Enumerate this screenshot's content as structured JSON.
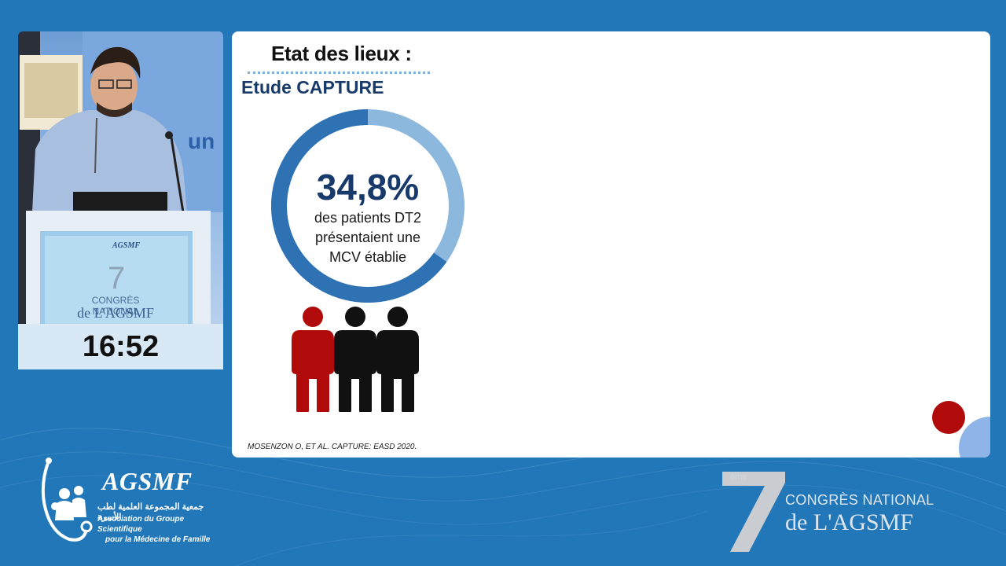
{
  "speaker_panel": {
    "timer": "16:52",
    "podium_screen": {
      "brand": "AGSMF",
      "number": "7",
      "line1": "CONGRÈS NATIONAL",
      "line2": "de L'AGSMF"
    },
    "backdrop_text": "un"
  },
  "slide": {
    "title": "Etat des lieux :",
    "subtitle": "Etude CAPTURE",
    "stat": {
      "value": "34,8%",
      "fraction": 0.348,
      "caption": [
        "des patients DT2",
        "présentaient une",
        "MCV établie"
      ]
    },
    "people_icons": [
      "red",
      "black",
      "black"
    ],
    "citation": "MOSENZON O,  ET AL. CAPTURE: EASD 2020.",
    "colors": {
      "ring_dark": "#2f72b4",
      "ring_light": "#8db8de",
      "accent_red": "#b00a0a",
      "title_blue": "#173a6a"
    }
  },
  "footer": {
    "left_logo": {
      "name": "AGSMF",
      "arabic": "جمعية المجموعة العلمية لطب الأسرة",
      "subtitle_line1": "Association du Groupe Scientifique",
      "subtitle_line2": "pour la  Médecine de Famille"
    },
    "right_logo": {
      "number": "7",
      "superscript": "ème",
      "line1": "CONGRÈS NATIONAL",
      "line2": "de L'AGSMF"
    }
  }
}
